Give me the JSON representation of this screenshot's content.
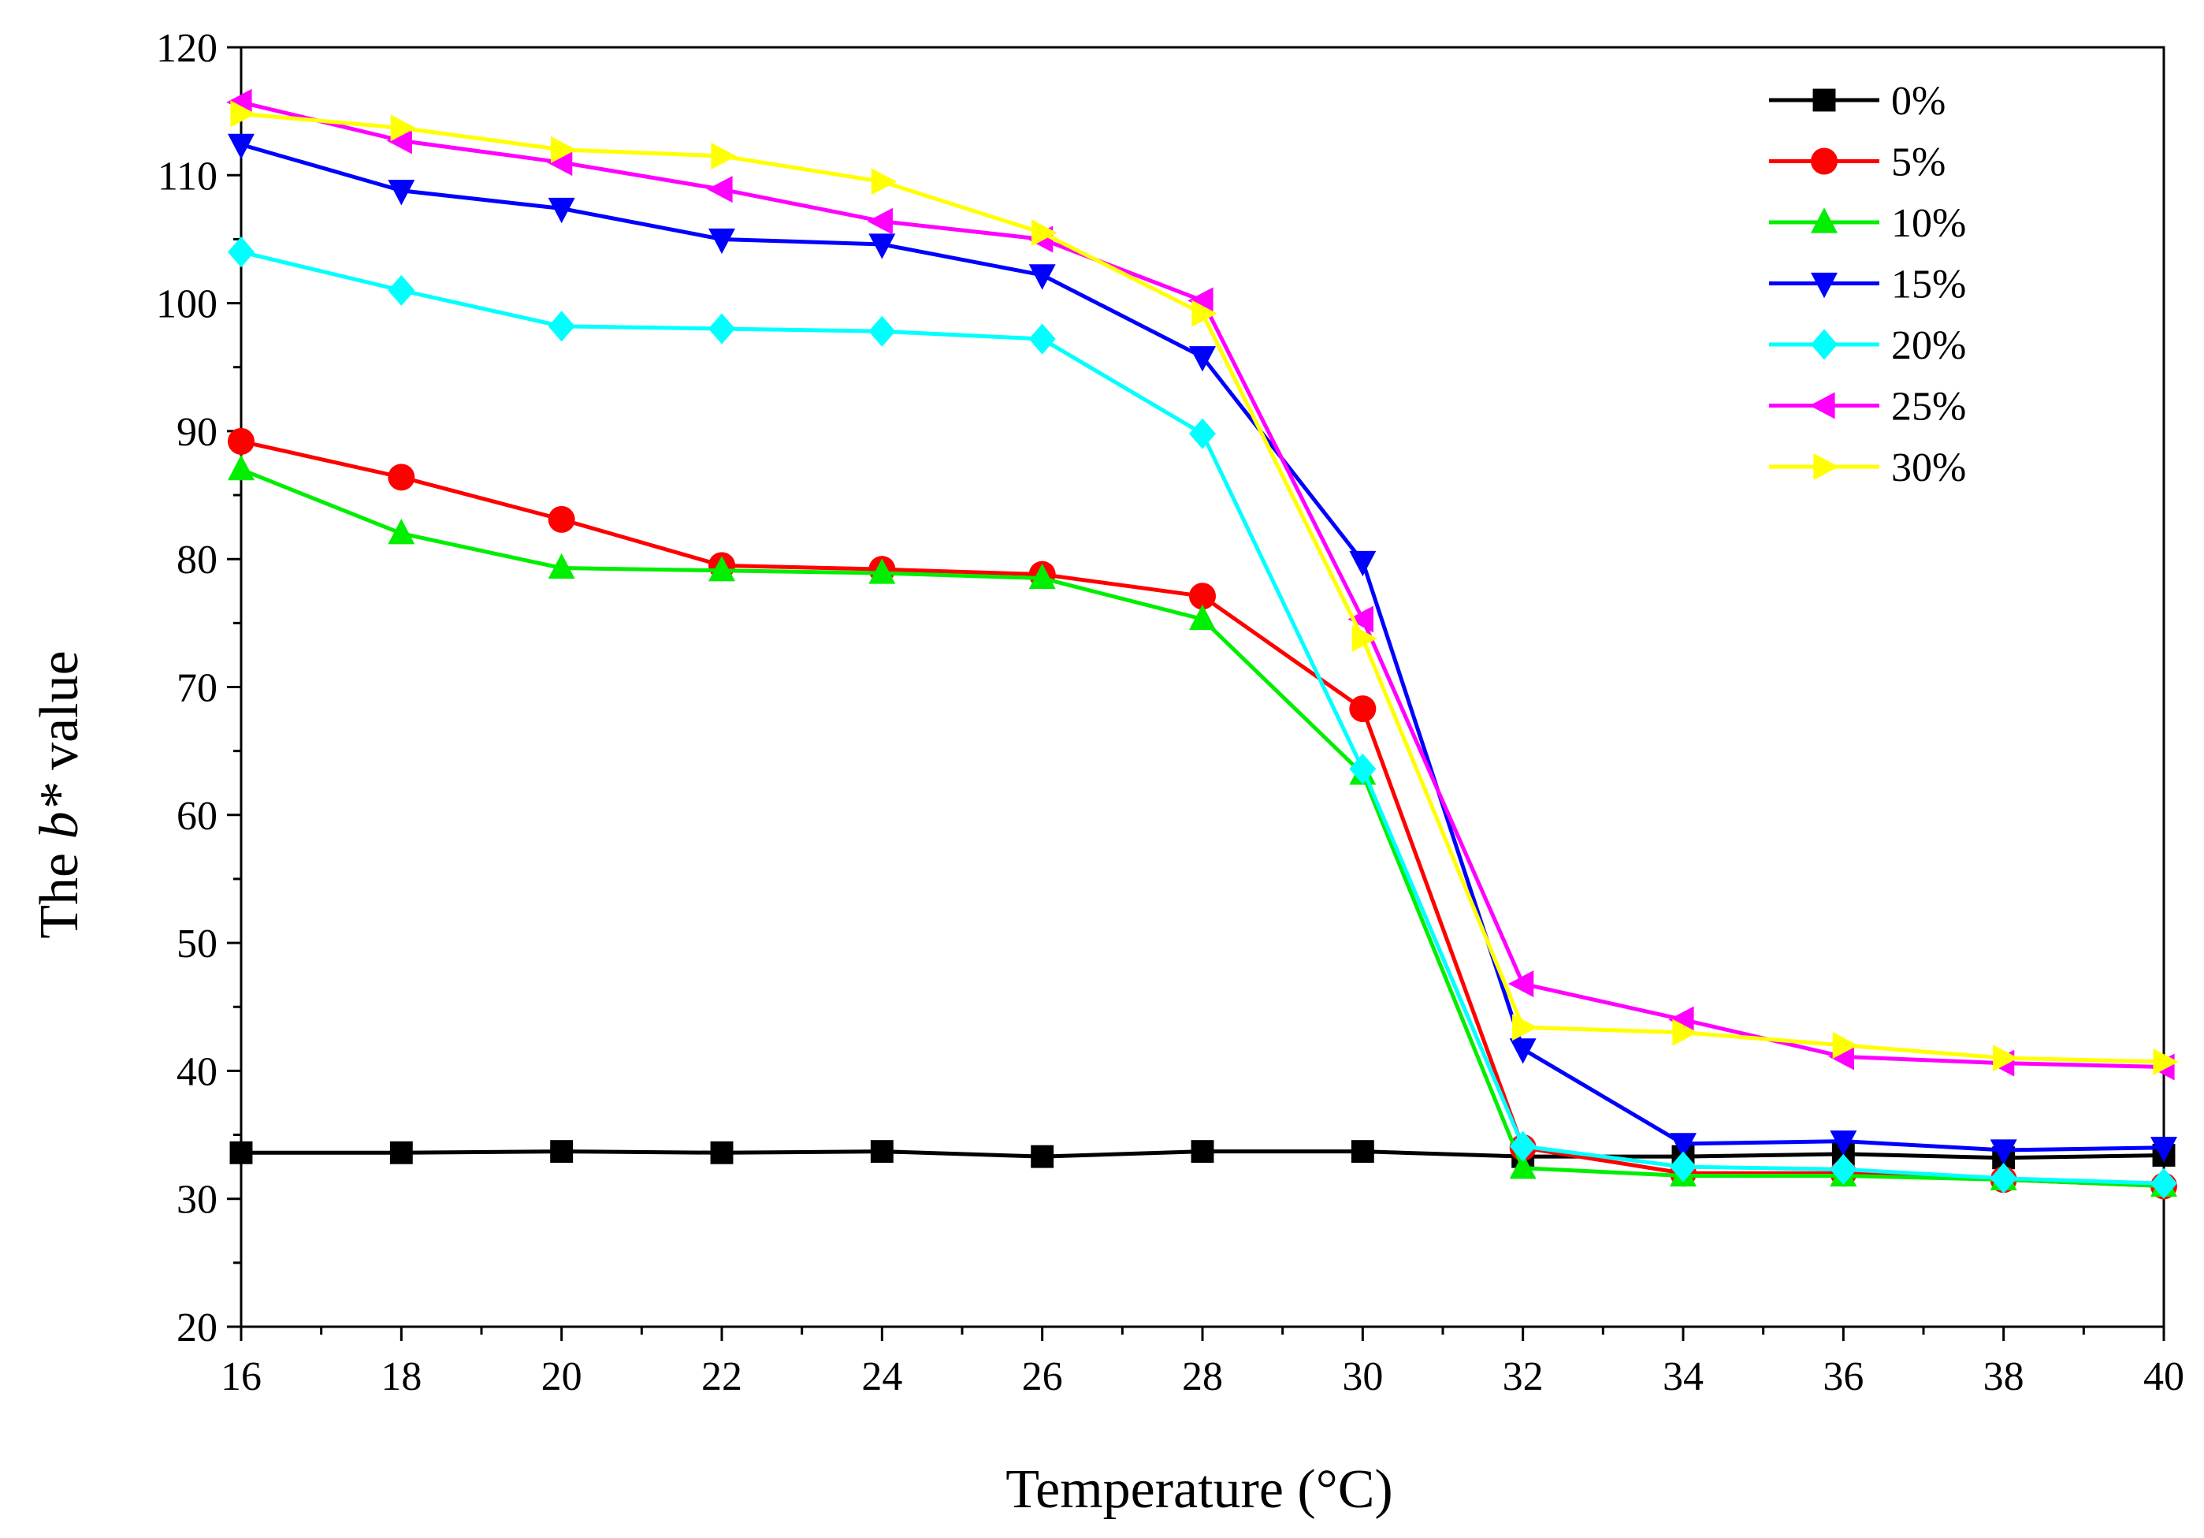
{
  "chart_data": {
    "type": "line",
    "title": "",
    "xlabel": "Temperature (°C)",
    "ylabel_prefix": "The ",
    "ylabel_var": "b*",
    "ylabel_suffix": " value",
    "xlim": [
      16,
      40
    ],
    "ylim": [
      20,
      120
    ],
    "xticks": [
      16,
      18,
      20,
      22,
      24,
      26,
      28,
      30,
      32,
      34,
      36,
      38,
      40
    ],
    "yticks": [
      20,
      30,
      40,
      50,
      60,
      70,
      80,
      90,
      100,
      110,
      120
    ],
    "grid": false,
    "legend_position": "top-right",
    "x": [
      16,
      18,
      20,
      22,
      24,
      26,
      28,
      30,
      32,
      34,
      36,
      38,
      40
    ],
    "series": [
      {
        "name": "0%",
        "color": "#000000",
        "marker": "square",
        "values": [
          33.6,
          33.6,
          33.7,
          33.6,
          33.7,
          33.3,
          33.7,
          33.7,
          33.3,
          33.3,
          33.5,
          33.2,
          33.4
        ]
      },
      {
        "name": "5%",
        "color": "#ff0000",
        "marker": "circle",
        "values": [
          89.2,
          86.4,
          83.1,
          79.5,
          79.2,
          78.8,
          77.1,
          68.3,
          34.0,
          32.0,
          32.0,
          31.5,
          31.0
        ]
      },
      {
        "name": "10%",
        "color": "#00ee00",
        "marker": "triangle-up",
        "values": [
          87.0,
          82.0,
          79.3,
          79.1,
          78.9,
          78.5,
          75.3,
          63.2,
          32.4,
          31.8,
          31.8,
          31.5,
          31.0
        ]
      },
      {
        "name": "15%",
        "color": "#0000ff",
        "marker": "triangle-down",
        "values": [
          112.4,
          108.8,
          107.4,
          105.0,
          104.6,
          102.2,
          95.8,
          79.8,
          41.7,
          34.3,
          34.5,
          33.8,
          34.0
        ]
      },
      {
        "name": "20%",
        "color": "#00ffff",
        "marker": "diamond",
        "values": [
          104.0,
          101.0,
          98.2,
          98.0,
          97.8,
          97.2,
          89.8,
          63.6,
          34.1,
          32.5,
          32.3,
          31.6,
          31.2
        ]
      },
      {
        "name": "25%",
        "color": "#ff00ff",
        "marker": "triangle-left",
        "values": [
          115.7,
          112.7,
          111.0,
          108.9,
          106.4,
          105.0,
          100.2,
          75.3,
          46.8,
          44.0,
          41.1,
          40.6,
          40.3
        ]
      },
      {
        "name": "30%",
        "color": "#ffff00",
        "marker": "triangle-right",
        "values": [
          114.8,
          113.7,
          112.0,
          111.5,
          109.5,
          105.5,
          99.2,
          73.8,
          43.4,
          43.0,
          42.0,
          41.0,
          40.7
        ]
      }
    ]
  }
}
